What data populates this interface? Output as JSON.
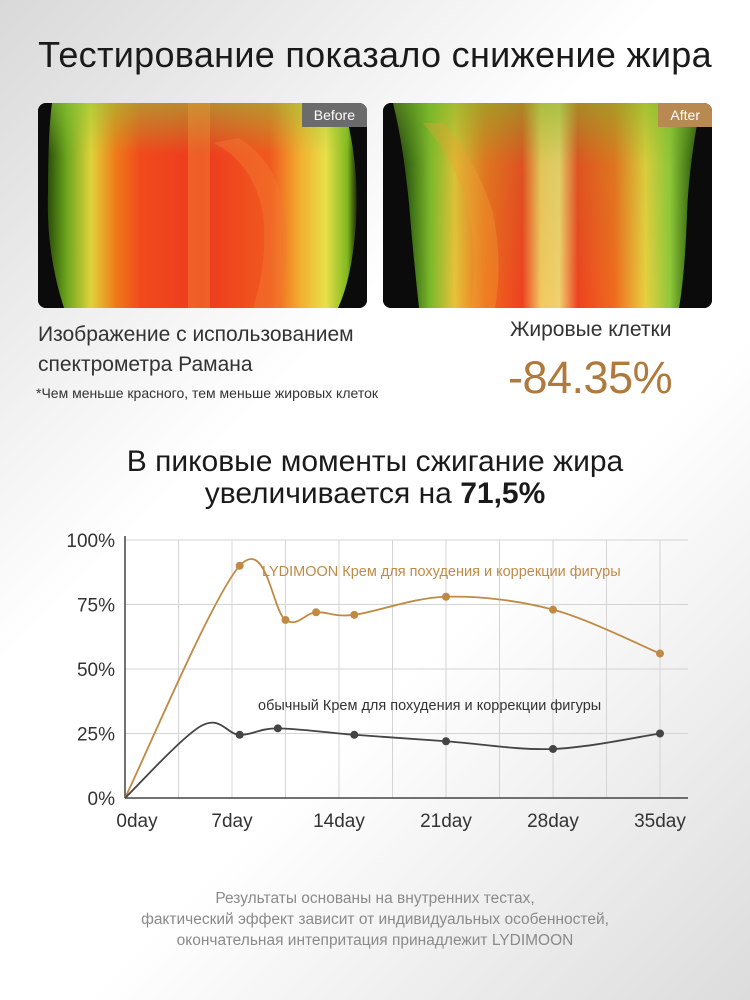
{
  "header": {
    "title": "Тестирование показало снижение жира"
  },
  "images": {
    "before_label": "Before",
    "after_label": "After"
  },
  "caption": {
    "line1": "Изображение с использованием",
    "line2": "спектрометра Рамана",
    "note": "*Чем меньше красного, тем меньше жировых клеток"
  },
  "stat": {
    "label": "Жировые клетки",
    "value": "-84.35%"
  },
  "headline": {
    "line1": "В пиковые моменты сжигание жира",
    "line2_prefix": "увеличивается на ",
    "line2_highlight": "71,5%"
  },
  "colors": {
    "accent": "#b07a3d",
    "lydimoon_series": "#c08a45",
    "ordinary_series": "#444444"
  },
  "chart_data": {
    "type": "line",
    "x_tick_labels": [
      "0day",
      "7day",
      "14day",
      "21day",
      "28day",
      "35day"
    ],
    "x_ticks": [
      0,
      7,
      14,
      21,
      28,
      35
    ],
    "y_tick_labels": [
      "100%",
      "75%",
      "50%",
      "25%",
      "0%"
    ],
    "y_ticks": [
      100,
      75,
      50,
      25,
      0
    ],
    "xlim": [
      0,
      35
    ],
    "ylim": [
      0,
      100
    ],
    "grid": true,
    "series": [
      {
        "name": "LYDIMOON Крем для похудения и коррекции фигуры",
        "color": "#c08a45",
        "points": [
          [
            0,
            0
          ],
          [
            7.5,
            90
          ],
          [
            10.5,
            69
          ],
          [
            12.5,
            72
          ],
          [
            15,
            71
          ],
          [
            21,
            78
          ],
          [
            28,
            73
          ],
          [
            35,
            56
          ]
        ]
      },
      {
        "name": "обычный Крем для похудения и коррекции фигуры",
        "color": "#444444",
        "points": [
          [
            0,
            0
          ],
          [
            5,
            28
          ],
          [
            7.5,
            24.5
          ],
          [
            10,
            27
          ],
          [
            15,
            24.5
          ],
          [
            21,
            22
          ],
          [
            28,
            19
          ],
          [
            35,
            25
          ]
        ]
      }
    ],
    "markers": [
      [
        [
          7.5,
          90
        ],
        [
          10.5,
          69
        ],
        [
          12.5,
          72
        ],
        [
          15,
          71
        ],
        [
          21,
          78
        ],
        [
          28,
          73
        ],
        [
          35,
          56
        ]
      ],
      [
        [
          7.5,
          24.5
        ],
        [
          10,
          27
        ],
        [
          15,
          24.5
        ],
        [
          21,
          22
        ],
        [
          28,
          19
        ],
        [
          35,
          25
        ]
      ]
    ]
  },
  "footer": {
    "line1": "Результаты основаны на внутренних тестах,",
    "line2": "фактический эффект зависит от индивидуальных особенностей,",
    "line3": "окончательная интепритация принадлежит LYDIMOON"
  }
}
